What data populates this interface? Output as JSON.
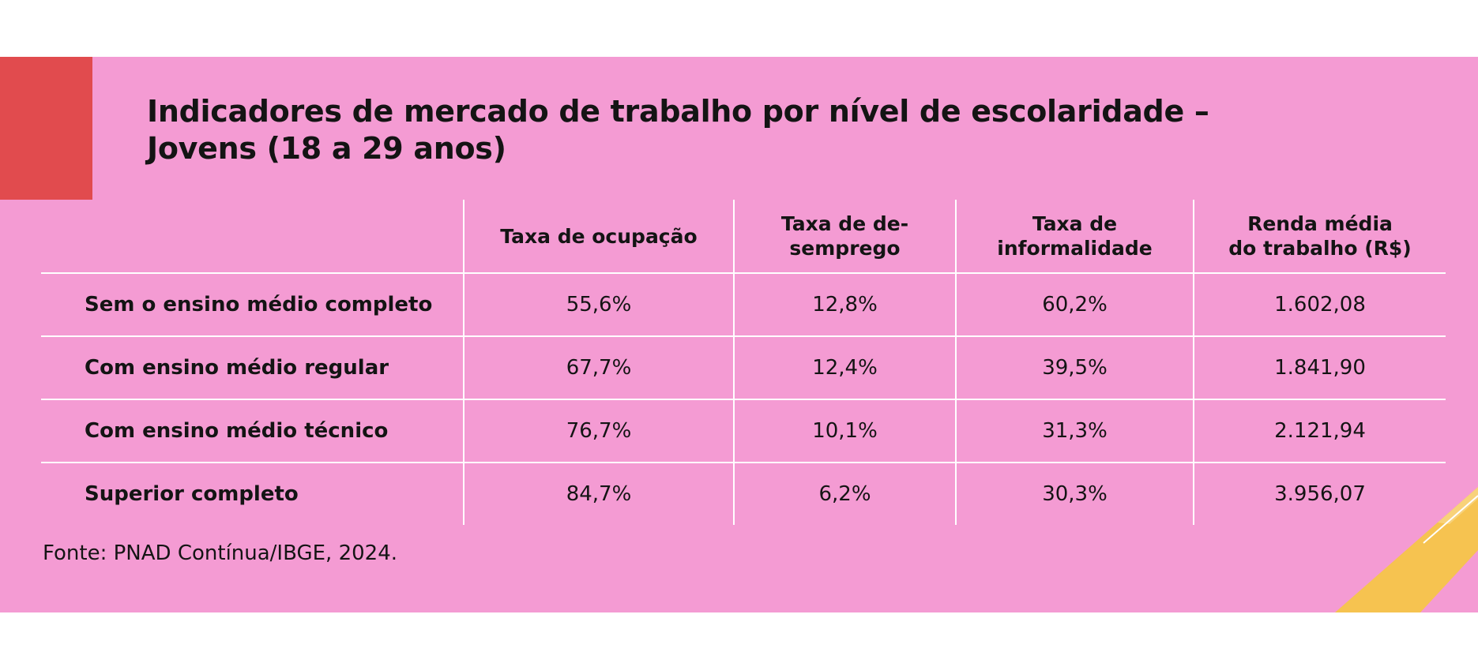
{
  "title": {
    "line1": "Indicadores de mercado de trabalho por nível de escolaridade –",
    "line2": "Jovens (18 a 29 anos)"
  },
  "table": {
    "headers": [
      "",
      "Taxa de ocupação",
      "Taxa de de-\nsemprego",
      "Taxa de\ninformalidade",
      "Renda média\ndo trabalho (R$)"
    ],
    "rows": [
      [
        "Sem o ensino médio completo",
        "55,6%",
        "12,8%",
        "60,2%",
        "1.602,08"
      ],
      [
        "Com ensino médio regular",
        "67,7%",
        "12,4%",
        "39,5%",
        "1.841,90"
      ],
      [
        "Com ensino médio técnico",
        "76,7%",
        "10,1%",
        "31,3%",
        "2.121,94"
      ],
      [
        "Superior completo",
        "84,7%",
        "6,2%",
        "30,3%",
        "3.956,07"
      ]
    ]
  },
  "source": "Fonte: PNAD Contínua/IBGE, 2024.",
  "colors": {
    "background": "#f49bd3",
    "accent_red": "#e14b4e",
    "accent_yellow": "#f6c350",
    "text": "#141414",
    "lines": "#ffffff"
  }
}
